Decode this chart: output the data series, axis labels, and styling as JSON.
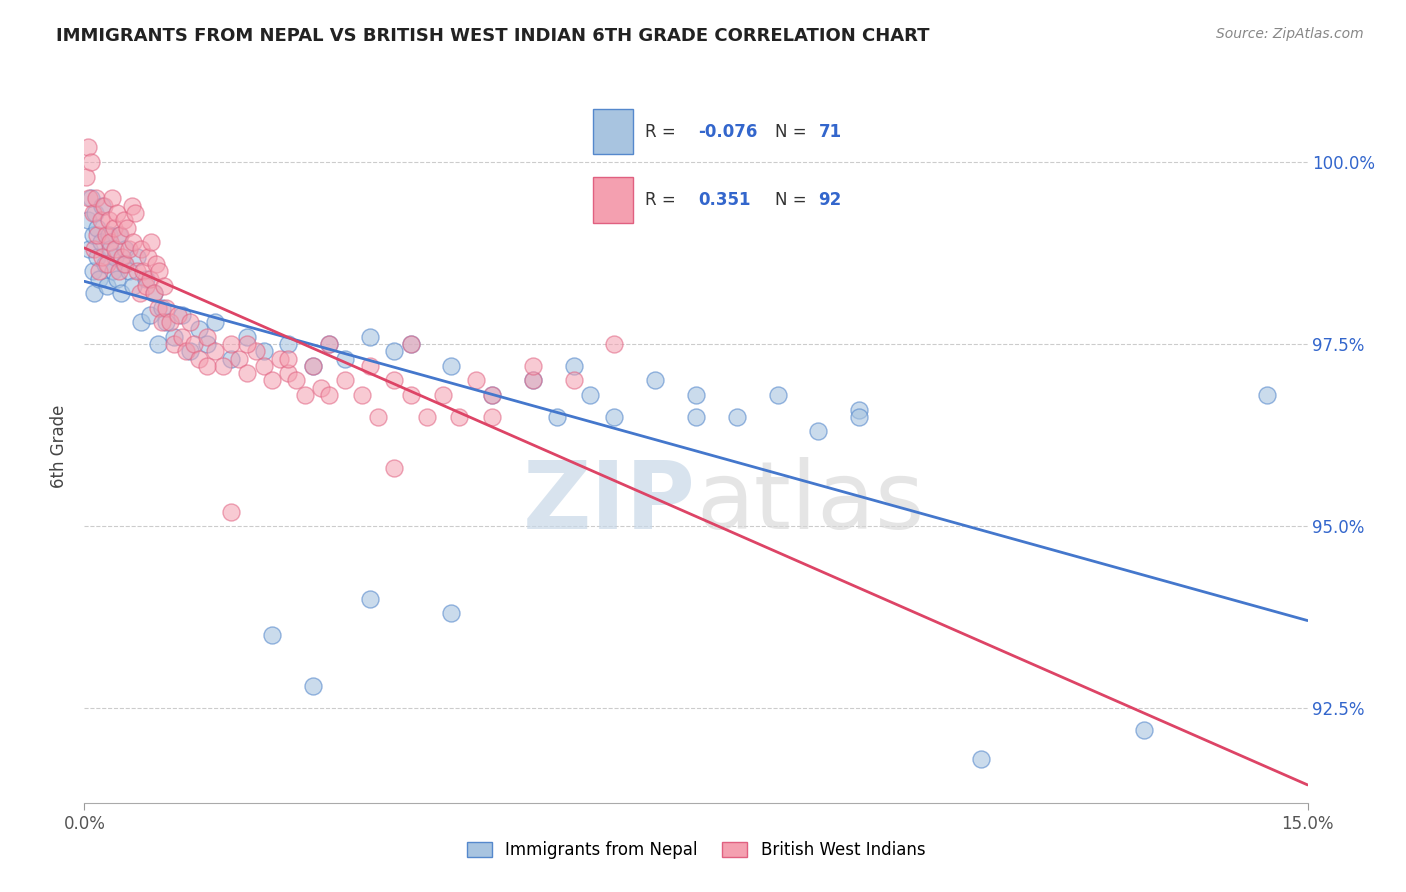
{
  "title": "IMMIGRANTS FROM NEPAL VS BRITISH WEST INDIAN 6TH GRADE CORRELATION CHART",
  "source": "Source: ZipAtlas.com",
  "ylabel": "6th Grade",
  "xmin": 0.0,
  "xmax": 15.0,
  "ymin": 91.2,
  "ymax": 101.0,
  "nepal_R": -0.076,
  "nepal_N": 71,
  "bwi_R": 0.351,
  "bwi_N": 92,
  "nepal_color": "#A8C4E0",
  "bwi_color": "#F4A0B0",
  "nepal_edge_color": "#5588CC",
  "bwi_edge_color": "#E06080",
  "nepal_line_color": "#4477CC",
  "bwi_line_color": "#DD4466",
  "watermark_zip": "ZIP",
  "watermark_atlas": "atlas",
  "ytick_vals": [
    92.5,
    95.0,
    97.5,
    100.0
  ],
  "ytick_labels": [
    "92.5%",
    "95.0%",
    "97.5%",
    "100.0%"
  ]
}
